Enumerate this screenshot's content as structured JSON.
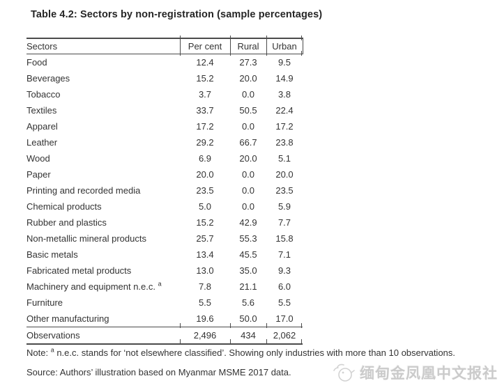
{
  "title": "Table 4.2: Sectors by non-registration (sample percentages)",
  "table": {
    "columns": [
      "Sectors",
      "Per cent",
      "Rural",
      "Urban"
    ],
    "rows": [
      {
        "sector": "Food",
        "percent": "12.4",
        "rural": "27.3",
        "urban": "9.5"
      },
      {
        "sector": "Beverages",
        "percent": "15.2",
        "rural": "20.0",
        "urban": "14.9"
      },
      {
        "sector": "Tobacco",
        "percent": "3.7",
        "rural": "0.0",
        "urban": "3.8"
      },
      {
        "sector": "Textiles",
        "percent": "33.7",
        "rural": "50.5",
        "urban": "22.4"
      },
      {
        "sector": "Apparel",
        "percent": "17.2",
        "rural": "0.0",
        "urban": "17.2"
      },
      {
        "sector": "Leather",
        "percent": "29.2",
        "rural": "66.7",
        "urban": "23.8"
      },
      {
        "sector": "Wood",
        "percent": "6.9",
        "rural": "20.0",
        "urban": "5.1"
      },
      {
        "sector": "Paper",
        "percent": "20.0",
        "rural": "0.0",
        "urban": "20.0"
      },
      {
        "sector": "Printing and recorded media",
        "percent": "23.5",
        "rural": "0.0",
        "urban": "23.5"
      },
      {
        "sector": "Chemical products",
        "percent": "5.0",
        "rural": "0.0",
        "urban": "5.9"
      },
      {
        "sector": "Rubber and plastics",
        "percent": "15.2",
        "rural": "42.9",
        "urban": "7.7"
      },
      {
        "sector": "Non-metallic mineral products",
        "percent": "25.7",
        "rural": "55.3",
        "urban": "15.8"
      },
      {
        "sector": "Basic metals",
        "percent": "13.4",
        "rural": "45.5",
        "urban": "7.1"
      },
      {
        "sector": "Fabricated metal products",
        "percent": "13.0",
        "rural": "35.0",
        "urban": "9.3"
      },
      {
        "sector": "Machinery and equipment n.e.c.",
        "sup": "a",
        "percent": "7.8",
        "rural": "21.1",
        "urban": "6.0"
      },
      {
        "sector": "Furniture",
        "percent": "5.5",
        "rural": "5.6",
        "urban": "5.5"
      },
      {
        "sector": "Other manufacturing",
        "percent": "19.6",
        "rural": "50.0",
        "urban": "17.0"
      }
    ],
    "footer": {
      "label": "Observations",
      "percent": "2,496",
      "rural": "434",
      "urban": "2,062"
    }
  },
  "note": {
    "prefix": "Note: ",
    "sup": "a",
    "text": " n.e.c. stands for ‘not elsewhere classified’. Showing only industries with more than 10 observations."
  },
  "source": "Source: Authors’ illustration based on Myanmar MSME 2017 data.",
  "watermark": {
    "icon": "phoenix-logo-icon",
    "text": "缅甸金凤凰中文报社"
  },
  "colors": {
    "text": "#333333",
    "rule": "#4a4a4a",
    "watermark": "#b9b9b9"
  }
}
